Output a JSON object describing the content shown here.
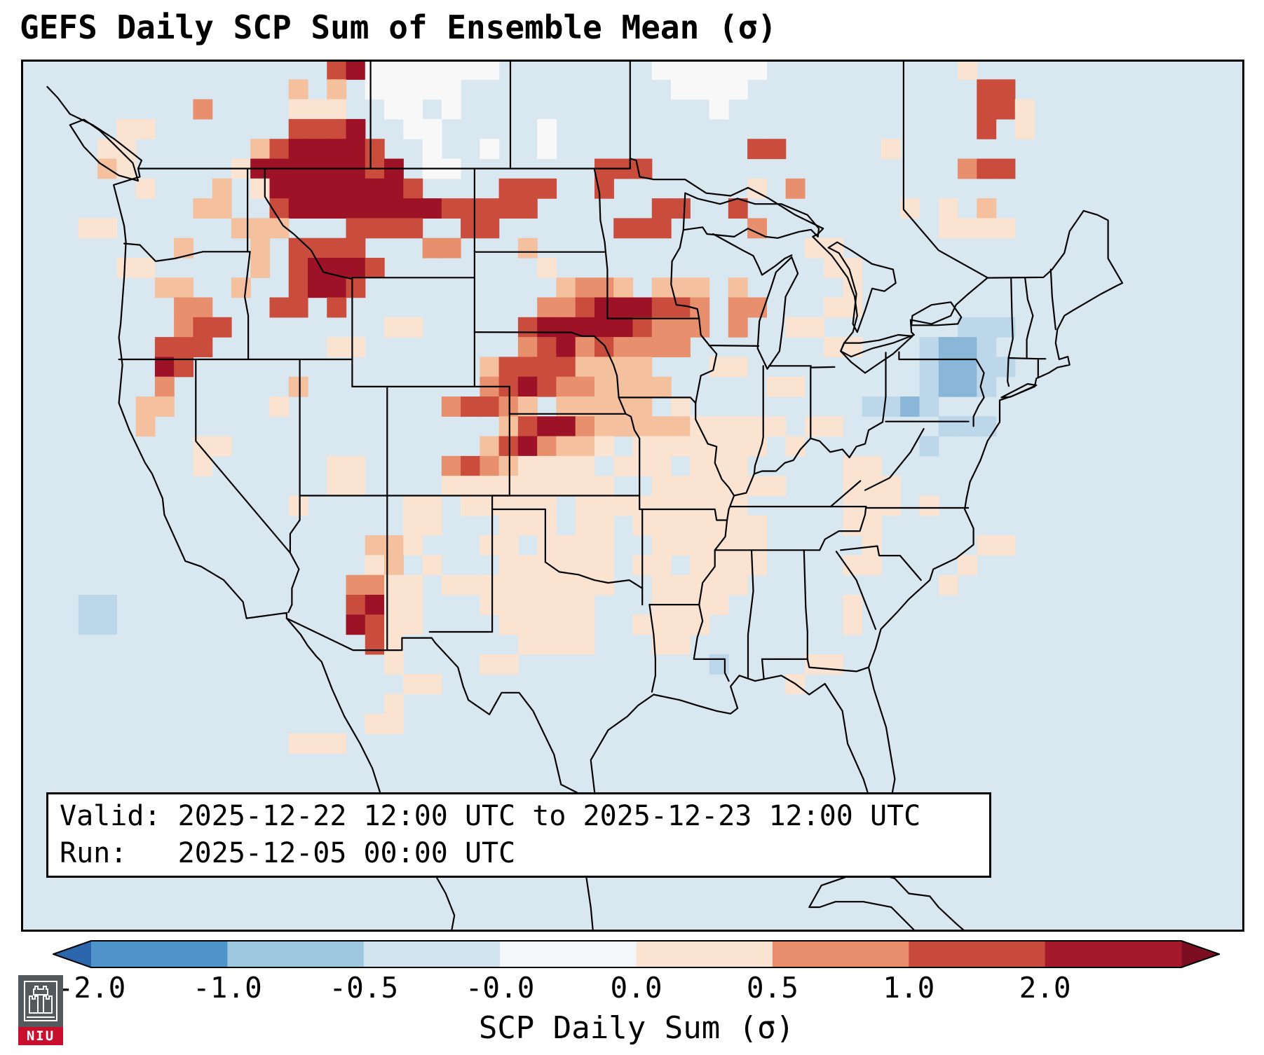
{
  "title": "GEFS Daily SCP Sum of Ensemble Mean (σ)",
  "info_box": {
    "valid_line": "Valid: 2025-12-22 12:00 UTC to 2025-12-23 12:00 UTC",
    "run_line": "Run:   2025-12-05 00:00 UTC"
  },
  "colorbar": {
    "label": "SCP Daily Sum (σ)",
    "ticks": [
      "-2.0",
      "-1.0",
      "-0.5",
      "-0.0",
      "0.0",
      "0.5",
      "1.0",
      "2.0"
    ],
    "segment_colors": [
      "#4e94c8",
      "#9ec8df",
      "#d2e4ef",
      "#f4f7f9",
      "#fbe3d2",
      "#e98e6c",
      "#c84a3d",
      "#a3182b"
    ],
    "left_arrow_color": "#2c66ac",
    "right_arrow_color": "#7d0d20",
    "outline_color": "#000000"
  },
  "logo": {
    "text": "NIU",
    "bar_color": "#c8102e",
    "box_color": "#54595d"
  },
  "chart_data": {
    "type": "heatmap",
    "title": "GEFS Daily SCP Sum of Ensemble Mean (σ)",
    "colorbar_label": "SCP Daily Sum (σ)",
    "colorbar_ticks": [
      "-2.0",
      "-1.0",
      "-0.5",
      "-0.0",
      "0.0",
      "0.5",
      "1.0",
      "2.0"
    ],
    "valid": "2025-12-22 12:00 UTC to 2025-12-23 12:00 UTC",
    "run": "2025-12-05 00:00 UTC",
    "units": "sigma (standardized anomaly)",
    "region": "Continental United States, southern Canada, northern Mexico",
    "palette": {
      ".": "#d9e7f1",
      "o": "#f8f8f8",
      "1": "#fbe3d2",
      "2": "#f5c09e",
      "3": "#e88f6d",
      "4": "#c94c3d",
      "5": "#9d1226",
      "b": "#bcd7e9",
      "B": "#8ab7d8"
    },
    "bin_legend": {
      ".": "about -0.0 (pale blue background)",
      "o": "about 0.0 (white)",
      "1": "0.0 to 0.5",
      "2": "about 0.5",
      "3": "0.5 to 1.0",
      "4": "1.0 to 2.0",
      "5": "greater than 2.0",
      "b": "-0.5 to -0.0",
      "B": "-1.0 to -0.5"
    },
    "grid_cols": 64,
    "grid_rows": 44,
    "grid": [
      "................45ooooooo........oooooo..........1.............",
      "..............2.2.ooooo...........oooo............44............",
      ".........3....111..oo.o.............o.............441...........",
      ".....11.......4445..oo.....o......................4.1...........",
      "....11......2455554..o..o..o..........44.....1..................",
      "....21.....155555545.oo.......444................344............",
      "......1...2.155555554....444..4.......1.3.......................",
      ".........22..45555555544444......44..4........1.1.2.............",
      "...11......222...4444..44......444....3.........1111............",
      "........2...2.4444...33...2..............11.....................",
      ".....11.....2.45554........1..............11....................",
      ".......22..2..4554..........2332.222.2.....1....................",
      "........33...44.4..........334555443.33...11....................",
      "........344........11.....4555554333.3..11.......bbb............",
      ".......444......11........345343333.......11...bBBb.............",
      ".......54...............244442222...11.........bBBbb............",
      ".......3......2.........3454332222.....11......bBBb.............",
      "......22.....1........34432.22222.1.........bbBb................",
      "......2..................245532222211111.11.....bbb.............",
      ".........11.............2453221.1111111.1......b................",
      ".........1......11....34321111.111.111.....11...................",
      "................11....111111111..1111111...111..................",
      "..............1.....11.11111.111111111.....111.1................",
      "....................11...111.11.1111111....11...................",
      "..................221...11.1111..111111.....1.....11............",
      "..................12.1...111111.11.1111....11....1..............",
      ".................3311.111111111..11111..........1...............",
      "...bb............4511...111111...1111......1....................",
      "...bb............5411....11111..1111.......1....................",
      "..................41......1111...11.............................",
      "...................1....11..........b....11.....................",
      "....................11..................1.......................",
      "...................1............................................",
      "..................11............................................",
      "..............111...............................................",
      "................................................................",
      "................................................................",
      "................................................................",
      "................................................................",
      "................................................................",
      "................................................................",
      "................................................................",
      "................................................................",
      "................................................................"
    ]
  }
}
